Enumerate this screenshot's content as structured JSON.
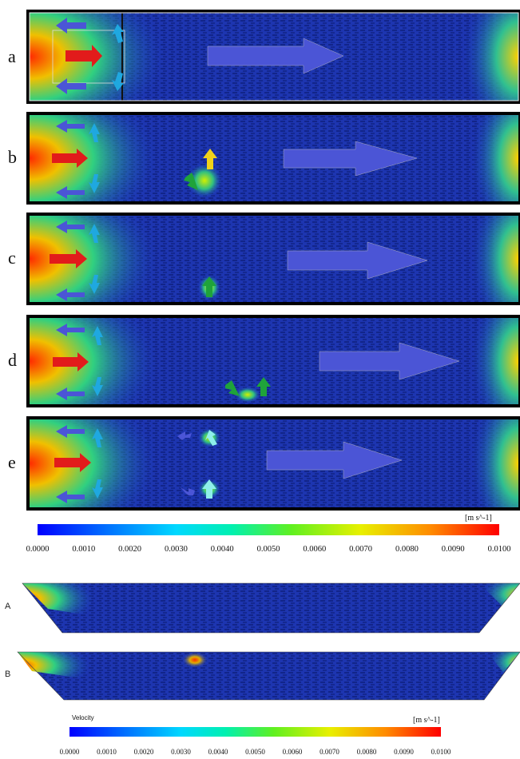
{
  "top_panels": [
    {
      "label": "a"
    },
    {
      "label": "b"
    },
    {
      "label": "c"
    },
    {
      "label": "d"
    },
    {
      "label": "e"
    }
  ],
  "bottom_panels": [
    {
      "label": "A"
    },
    {
      "label": "B"
    }
  ],
  "colorbar_top": {
    "unit": "[m s^-1]",
    "ticks": [
      "0.0000",
      "0.0010",
      "0.0020",
      "0.0030",
      "0.0040",
      "0.0050",
      "0.0060",
      "0.0070",
      "0.0080",
      "0.0090",
      "0.0100"
    ]
  },
  "colorbar_bottom": {
    "title": "Velocity",
    "unit": "[m s^-1]",
    "ticks": [
      "0.0000",
      "0.0010",
      "0.0020",
      "0.0030",
      "0.0040",
      "0.0050",
      "0.0060",
      "0.0070",
      "0.0080",
      "0.0090",
      "0.0100"
    ]
  },
  "colors": {
    "flow_arrow": "#4b55d6",
    "inlet_arrow": "#e21b1b",
    "side_arrow": "#4b55d6",
    "cyan_arrow": "#1fa8e0",
    "green_arrow": "#1fa33a",
    "yellow_arrow": "#f0d21a",
    "light_cyan_arrow": "#8ef0ea"
  }
}
